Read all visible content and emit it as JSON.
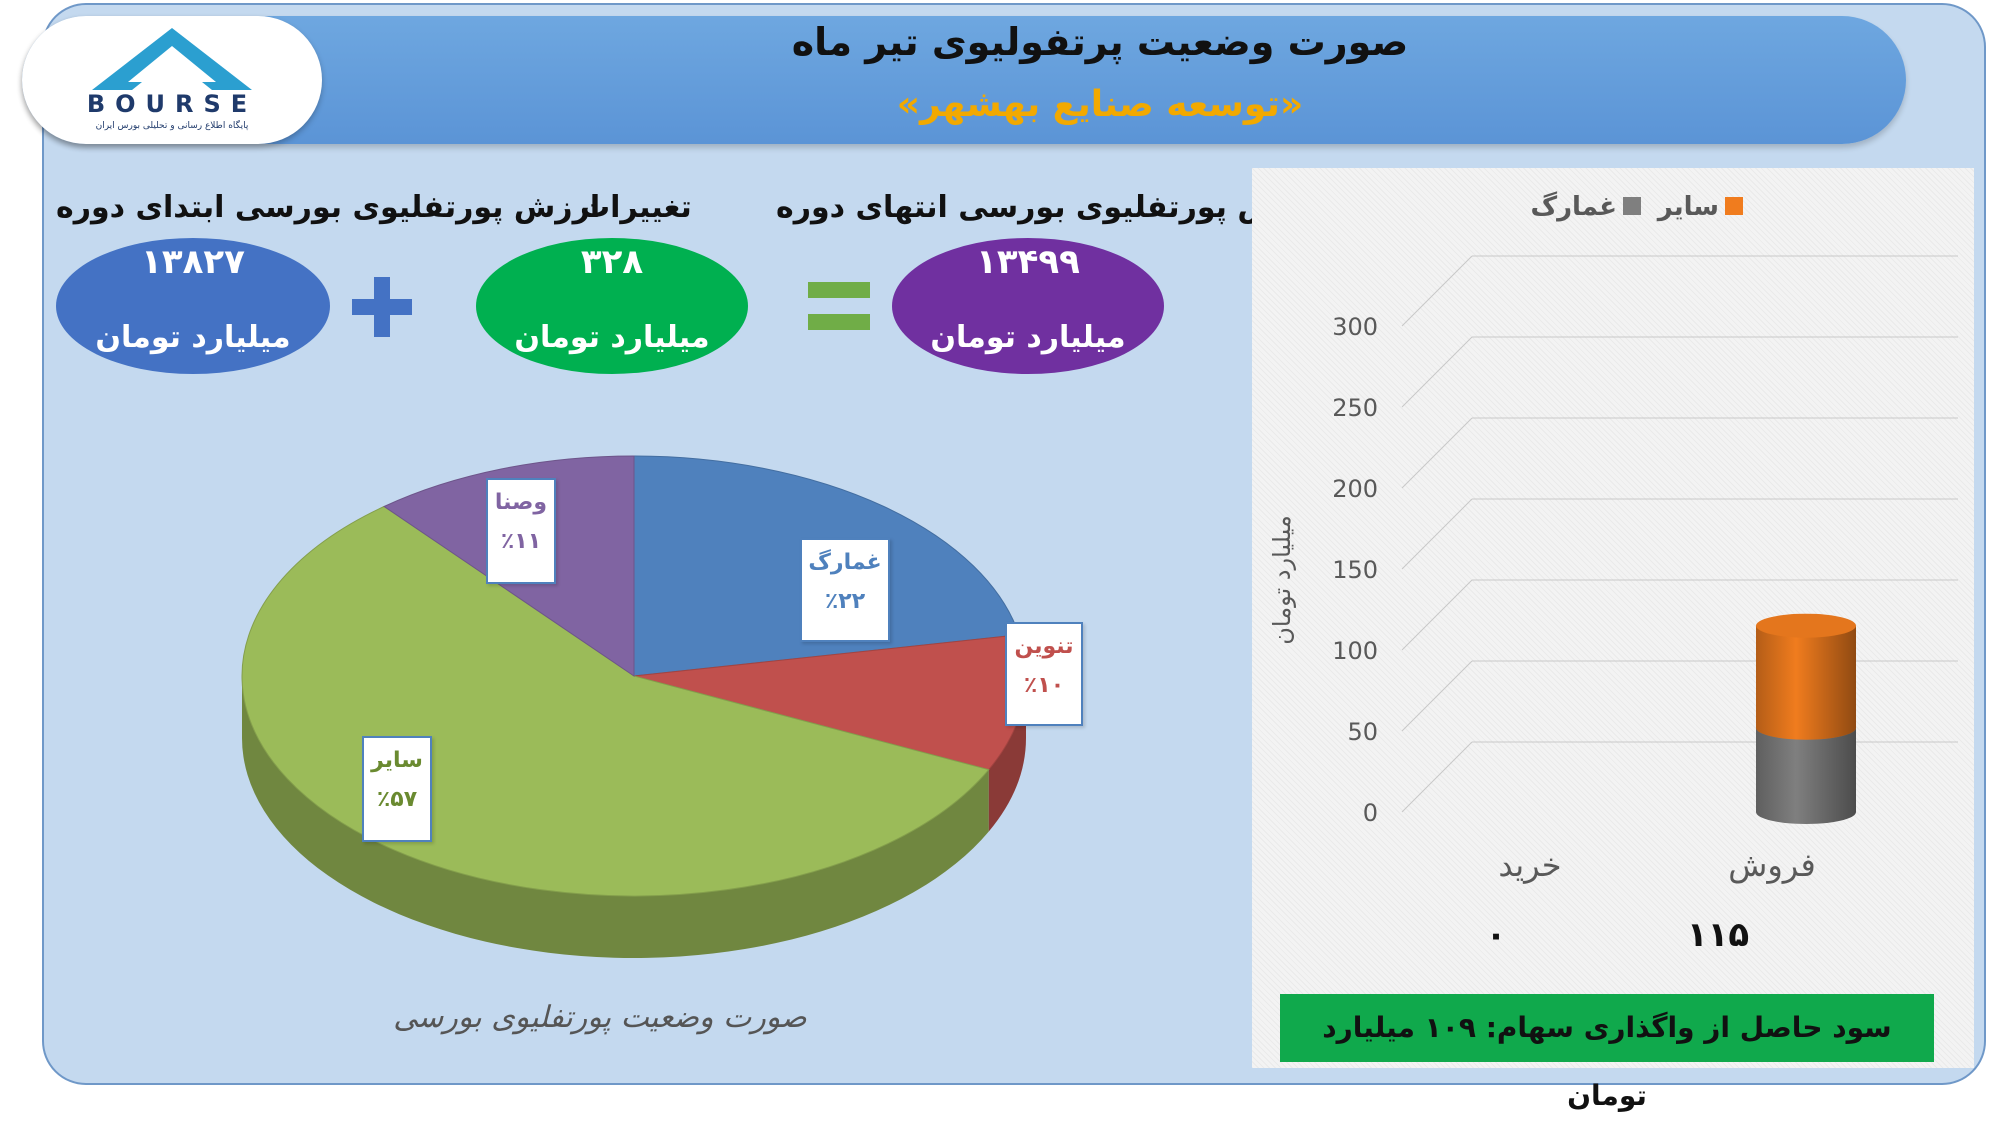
{
  "header": {
    "title": "صورت وضعیت پرتفولیوی تیر ماه",
    "subtitle": "«توسعه صنایع بهشهر»"
  },
  "logo": {
    "brand_text": "BOURSE",
    "tagline": "پایگاه اطلاع رسانی و تحلیلی بورس ایران"
  },
  "summary": {
    "start": {
      "label": "ارزش پورتفلیوی بورسی ابتدای دوره",
      "value": "۱۳۸۲۷",
      "unit": "میلیارد تومان",
      "color": "#4472c4"
    },
    "change": {
      "label": "تغییرات",
      "value": "۳۲۸",
      "unit": "میلیارد تومان",
      "color": "#00b050"
    },
    "end": {
      "label": "ارزش پورتفلیوی بورسی انتهای دوره",
      "value": "۱۳۴۹۹",
      "unit": "میلیارد تومان",
      "color": "#7030a0"
    },
    "plus_symbol_color": "#4472c4",
    "equals_symbol_color": "#70ad47"
  },
  "pie_caption": "صورت وضعیت پورتفلیوی بورسی",
  "bar_labels_below": {
    "buy_value": "۰",
    "sell_value": "۱۱۵"
  },
  "profit_banner": "سود حاصل از واگذاری سهام: ۱۰۹ میلیارد تومان",
  "chart_data": [
    {
      "type": "pie",
      "title": "صورت وضعیت پورتفلیوی بورسی",
      "slices": [
        {
          "name": "غمارگ",
          "value": 22,
          "label": "٪۲۲",
          "color": "#4f81bd"
        },
        {
          "name": "تنوین",
          "value": 10,
          "label": "٪۱۰",
          "color": "#c0504d"
        },
        {
          "name": "سایر",
          "value": 57,
          "label": "٪۵۷",
          "color": "#9bbb59"
        },
        {
          "name": "وصنا",
          "value": 11,
          "label": "٪۱۱",
          "color": "#8064a2"
        }
      ]
    },
    {
      "type": "bar",
      "stacked": true,
      "categories": [
        "خرید",
        "فروش"
      ],
      "series": [
        {
          "name": "سایر",
          "values": [
            0,
            63
          ],
          "color": "#f07c1e"
        },
        {
          "name": "غمارگ",
          "values": [
            0,
            52
          ],
          "color": "#7f7f7f"
        }
      ],
      "ylabel": "میلیارد تومان",
      "ylim": [
        0,
        300
      ],
      "yticks": [
        0,
        50,
        100,
        150,
        200,
        250,
        300
      ],
      "legend_position": "top",
      "grid": true
    }
  ]
}
